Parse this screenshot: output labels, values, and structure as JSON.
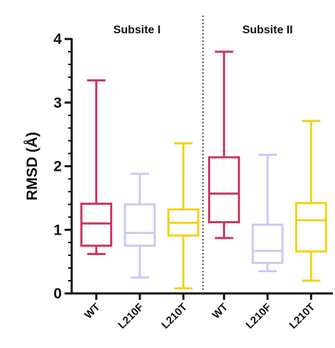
{
  "chart_data": {
    "type": "boxplot",
    "ylabel": "RMSD (Å)",
    "ylim": [
      0,
      4
    ],
    "yticks": [
      0,
      1,
      2,
      3,
      4
    ],
    "y_minor_step": 0.2,
    "groups": [
      "Subsite I",
      "Subsite II"
    ],
    "boxes": [
      {
        "group": 0,
        "category": "WT",
        "color": "#c8365f",
        "min": 0.62,
        "q1": 0.75,
        "median": 1.1,
        "q3": 1.41,
        "max": 3.35
      },
      {
        "group": 0,
        "category": "L210F",
        "color": "#c9caf2",
        "min": 0.25,
        "q1": 0.75,
        "median": 0.95,
        "q3": 1.4,
        "max": 1.88
      },
      {
        "group": 0,
        "category": "L210T",
        "color": "#f2d21a",
        "min": 0.08,
        "q1": 0.91,
        "median": 1.11,
        "q3": 1.32,
        "max": 2.36
      },
      {
        "group": 1,
        "category": "WT",
        "color": "#c8365f",
        "min": 0.87,
        "q1": 1.12,
        "median": 1.57,
        "q3": 2.14,
        "max": 3.8
      },
      {
        "group": 1,
        "category": "L210F",
        "color": "#c9caf2",
        "min": 0.35,
        "q1": 0.48,
        "median": 0.67,
        "q3": 1.08,
        "max": 2.18
      },
      {
        "group": 1,
        "category": "L210T",
        "color": "#f2d21a",
        "min": 0.2,
        "q1": 0.66,
        "median": 1.15,
        "q3": 1.42,
        "max": 2.71
      }
    ],
    "divider": {
      "style": "dotted",
      "color": "#555555"
    },
    "grid": false,
    "legend": "none"
  }
}
